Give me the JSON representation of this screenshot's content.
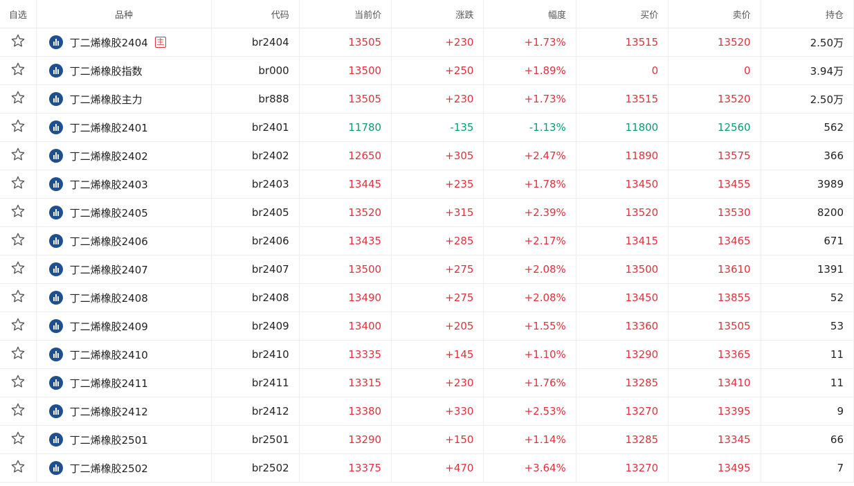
{
  "colors": {
    "up": "#e0313d",
    "down": "#0a9a72",
    "badge": "#1d4f91"
  },
  "headers": {
    "fav": "自选",
    "name": "品种",
    "code": "代码",
    "price": "当前价",
    "change": "涨跌",
    "pct": "幅度",
    "bid": "买价",
    "ask": "卖价",
    "oi": "持仓"
  },
  "rows": [
    {
      "name": "丁二烯橡胶2404",
      "tag": "主",
      "code": "br2404",
      "price": "13505",
      "change": "+230",
      "pct": "+1.73%",
      "bid": "13515",
      "ask": "13520",
      "oi": "2.50万",
      "dir": "up"
    },
    {
      "name": "丁二烯橡胶指数",
      "code": "br000",
      "price": "13500",
      "change": "+250",
      "pct": "+1.89%",
      "bid": "0",
      "ask": "0",
      "oi": "3.94万",
      "dir": "up"
    },
    {
      "name": "丁二烯橡胶主力",
      "code": "br888",
      "price": "13505",
      "change": "+230",
      "pct": "+1.73%",
      "bid": "13515",
      "ask": "13520",
      "oi": "2.50万",
      "dir": "up"
    },
    {
      "name": "丁二烯橡胶2401",
      "code": "br2401",
      "price": "11780",
      "change": "-135",
      "pct": "-1.13%",
      "bid": "11800",
      "ask": "12560",
      "oi": "562",
      "dir": "down"
    },
    {
      "name": "丁二烯橡胶2402",
      "code": "br2402",
      "price": "12650",
      "change": "+305",
      "pct": "+2.47%",
      "bid": "11890",
      "ask": "13575",
      "oi": "366",
      "dir": "up"
    },
    {
      "name": "丁二烯橡胶2403",
      "code": "br2403",
      "price": "13445",
      "change": "+235",
      "pct": "+1.78%",
      "bid": "13450",
      "ask": "13455",
      "oi": "3989",
      "dir": "up"
    },
    {
      "name": "丁二烯橡胶2405",
      "code": "br2405",
      "price": "13520",
      "change": "+315",
      "pct": "+2.39%",
      "bid": "13520",
      "ask": "13530",
      "oi": "8200",
      "dir": "up"
    },
    {
      "name": "丁二烯橡胶2406",
      "code": "br2406",
      "price": "13435",
      "change": "+285",
      "pct": "+2.17%",
      "bid": "13415",
      "ask": "13465",
      "oi": "671",
      "dir": "up"
    },
    {
      "name": "丁二烯橡胶2407",
      "code": "br2407",
      "price": "13500",
      "change": "+275",
      "pct": "+2.08%",
      "bid": "13500",
      "ask": "13610",
      "oi": "1391",
      "dir": "up"
    },
    {
      "name": "丁二烯橡胶2408",
      "code": "br2408",
      "price": "13490",
      "change": "+275",
      "pct": "+2.08%",
      "bid": "13450",
      "ask": "13855",
      "oi": "52",
      "dir": "up"
    },
    {
      "name": "丁二烯橡胶2409",
      "code": "br2409",
      "price": "13400",
      "change": "+205",
      "pct": "+1.55%",
      "bid": "13360",
      "ask": "13505",
      "oi": "53",
      "dir": "up"
    },
    {
      "name": "丁二烯橡胶2410",
      "code": "br2410",
      "price": "13335",
      "change": "+145",
      "pct": "+1.10%",
      "bid": "13290",
      "ask": "13365",
      "oi": "11",
      "dir": "up"
    },
    {
      "name": "丁二烯橡胶2411",
      "code": "br2411",
      "price": "13315",
      "change": "+230",
      "pct": "+1.76%",
      "bid": "13285",
      "ask": "13410",
      "oi": "11",
      "dir": "up"
    },
    {
      "name": "丁二烯橡胶2412",
      "code": "br2412",
      "price": "13380",
      "change": "+330",
      "pct": "+2.53%",
      "bid": "13270",
      "ask": "13395",
      "oi": "9",
      "dir": "up"
    },
    {
      "name": "丁二烯橡胶2501",
      "code": "br2501",
      "price": "13290",
      "change": "+150",
      "pct": "+1.14%",
      "bid": "13285",
      "ask": "13345",
      "oi": "66",
      "dir": "up"
    },
    {
      "name": "丁二烯橡胶2502",
      "code": "br2502",
      "price": "13375",
      "change": "+470",
      "pct": "+3.64%",
      "bid": "13270",
      "ask": "13495",
      "oi": "7",
      "dir": "up"
    }
  ]
}
